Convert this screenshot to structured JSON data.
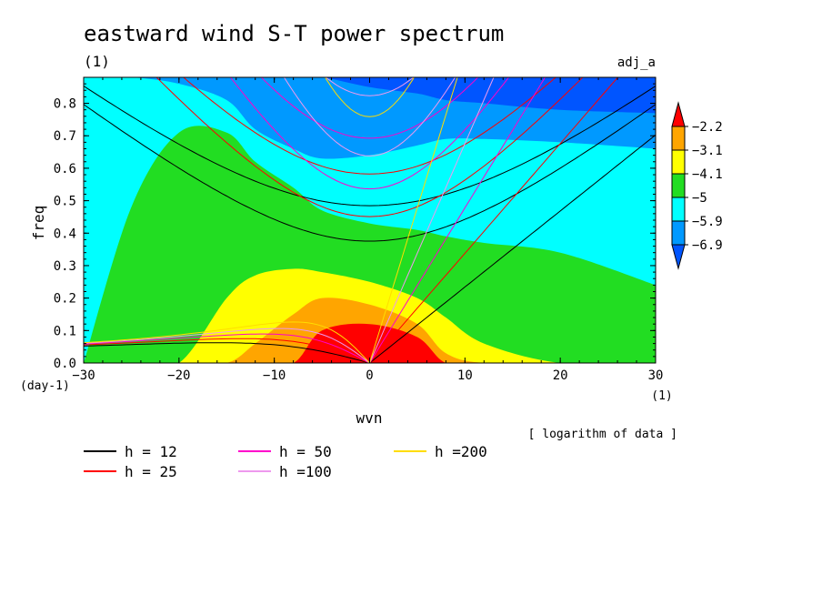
{
  "chart_data": {
    "type": "heatmap",
    "title": "eastward wind S-T power spectrum",
    "title_unit": "(1)",
    "panel_label": "adj_a",
    "xlabel": "wvn",
    "xunit": "(1)",
    "ylabel": "freq",
    "yunit": "(day-1)",
    "xlim": [
      -30,
      30
    ],
    "ylim": [
      0,
      0.88
    ],
    "xticks": [
      -30,
      -20,
      -10,
      0,
      10,
      20,
      30
    ],
    "yticks": [
      0.0,
      0.1,
      0.2,
      0.3,
      0.4,
      0.5,
      0.6,
      0.7,
      0.8
    ],
    "note": "[ logarithm of data ]",
    "colorbar": {
      "levels": [
        "-2.2",
        "-3.1",
        "-4.1",
        "-5",
        "-5.9",
        "-6.9"
      ],
      "colors": [
        "#ff0000",
        "#ffa500",
        "#ffff00",
        "#22dd22",
        "#00ffff",
        "#0099ff",
        "#0055ff"
      ]
    },
    "fills": [
      {
        "level": "-5.9",
        "color": "#0099ff",
        "ytop": [
          0.88,
          0.88,
          0.88,
          0.88,
          0.88,
          0.88,
          0.88,
          0.88,
          0.88,
          0.88,
          0.88,
          0.88,
          0.88
        ],
        "ybot": [
          0.88,
          0.88,
          0.86,
          0.81,
          0.72,
          0.66,
          0.63,
          0.64,
          0.67,
          0.69,
          0.69,
          0.68,
          0.66
        ]
      },
      {
        "level": "-6.9",
        "color": "#0055ff",
        "ytop": [
          0.88,
          0.88,
          0.88,
          0.88,
          0.88,
          0.88,
          0.88,
          0.88,
          0.88,
          0.88,
          0.88,
          0.88,
          0.88
        ],
        "ybot": [
          0.88,
          0.88,
          0.88,
          0.88,
          0.88,
          0.88,
          0.88,
          0.85,
          0.83,
          0.81,
          0.8,
          0.78,
          0.77
        ]
      },
      {
        "level": "-5",
        "color": "#22dd22",
        "ytop": [
          0,
          0.48,
          0.71,
          0.71,
          0.62,
          0.54,
          0.47,
          0.43,
          0.41,
          0.39,
          0.37,
          0.34,
          0.24
        ],
        "ybot": [
          0,
          0,
          0,
          0,
          0,
          0,
          0,
          0,
          0,
          0,
          0,
          0,
          0
        ]
      },
      {
        "level": "-4.1",
        "color": "#ffff00",
        "ytop": [
          0,
          0,
          0,
          0.2,
          0.27,
          0.29,
          0.28,
          0.25,
          0.2,
          0.14,
          0.06,
          0,
          0
        ],
        "ybot": [
          0,
          0,
          0,
          0,
          0,
          0,
          0,
          0,
          0,
          0,
          0,
          0,
          0
        ]
      },
      {
        "level": "-3.1",
        "color": "#ffa500",
        "ytop": [
          0,
          0,
          0,
          0,
          0.06,
          0.15,
          0.2,
          0.18,
          0.12,
          0.03,
          0,
          0,
          0
        ],
        "ybot": [
          0,
          0,
          0,
          0,
          0,
          0,
          0,
          0,
          0,
          0,
          0,
          0,
          0
        ]
      },
      {
        "level": "-2.2",
        "color": "#ff0000",
        "ytop": [
          0,
          0,
          0,
          0,
          0,
          0,
          0.1,
          0.12,
          0.08,
          0,
          0,
          0,
          0
        ],
        "ybot": [
          0,
          0,
          0,
          0,
          0,
          0,
          0,
          0,
          0,
          0,
          0,
          0,
          0
        ]
      }
    ],
    "fill_x": [
      -30,
      -25,
      -20,
      -15,
      -12,
      -8,
      -5,
      0,
      5,
      8,
      12,
      20,
      30
    ],
    "dispersion_series": [
      {
        "name": "h = 12",
        "h": 12,
        "color": "#000000"
      },
      {
        "name": "h = 25",
        "h": 25,
        "color": "#ff0000"
      },
      {
        "name": "h = 50",
        "h": 50,
        "color": "#ff00cc"
      },
      {
        "name": "h =100",
        "h": 100,
        "color": "#ee99ee"
      },
      {
        "name": "h =200",
        "h": 200,
        "color": "#ffdd00"
      }
    ]
  }
}
